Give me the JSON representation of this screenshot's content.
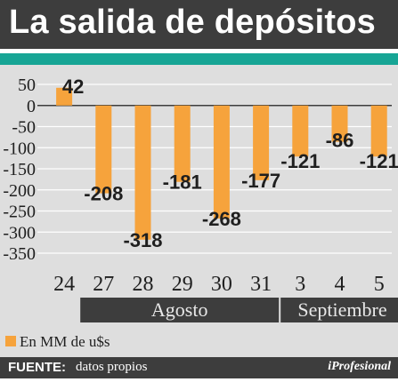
{
  "header": {
    "title": "La salida de depósitos"
  },
  "footer": {
    "source_label": "FUENTE:",
    "source_text": "datos propios",
    "brand": "iProfesional"
  },
  "chart_data": {
    "type": "bar",
    "title": "La salida de depósitos",
    "categories": [
      "24",
      "27",
      "28",
      "29",
      "30",
      "31",
      "3",
      "4",
      "5"
    ],
    "values": [
      42,
      -208,
      -318,
      -181,
      -268,
      -177,
      -121,
      -86,
      -121
    ],
    "data_labels": [
      "42",
      "-208",
      "-318",
      "-181",
      "-268",
      "-177",
      "-121",
      "-86",
      "-121"
    ],
    "series": [
      {
        "name": "En MM de u$s",
        "values": [
          42,
          -208,
          -318,
          -181,
          -268,
          -177,
          -121,
          -86,
          -121
        ]
      }
    ],
    "ylim": [
      -350,
      50
    ],
    "y_ticks": [
      50,
      0,
      -50,
      -100,
      -150,
      -200,
      -250,
      -300,
      -350
    ],
    "y_tick_labels": [
      "50",
      "0",
      "-50",
      "-100",
      "-150",
      "-200",
      "-250",
      "-300",
      "-350"
    ],
    "x_groups": [
      {
        "label": "Agosto",
        "start": 1,
        "end": 5
      },
      {
        "label": "Septiembre",
        "start": 6,
        "end": 8
      }
    ],
    "legend": {
      "label": "En MM de u$s",
      "position": "bottom-left"
    },
    "grid": true,
    "colors": {
      "bar": "#f6a33c",
      "group_bar": "#3d3d3d",
      "plot_bg": "#dedede",
      "grid": "#ffffff",
      "zero_line": "#3d3d3d"
    }
  }
}
